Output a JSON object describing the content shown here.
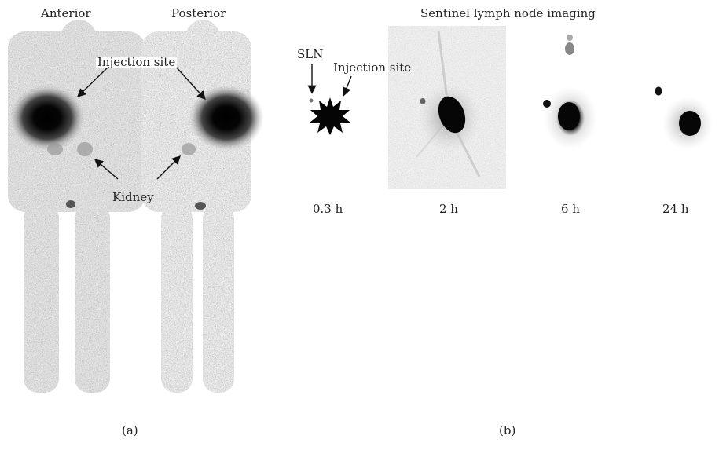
{
  "panel_a": {
    "anterior_label": "Anterior",
    "posterior_label": "Posterior",
    "injection_site_label": "Injection site",
    "kidney_label": "Kidney",
    "caption": "(a)"
  },
  "panel_b": {
    "title": "Sentinel lymph node imaging",
    "sln_label": "SLN",
    "injection_site_label": "Injection site",
    "timepoints": [
      "0.3 h",
      "2 h",
      "6 h",
      "24 h"
    ],
    "caption": "(b)"
  }
}
